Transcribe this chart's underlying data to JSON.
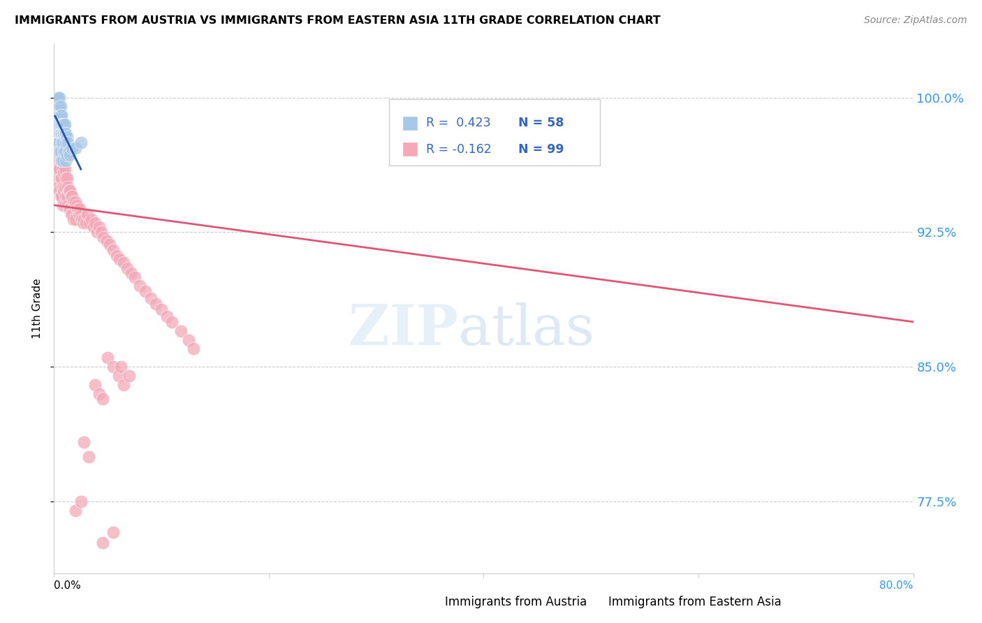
{
  "title": "IMMIGRANTS FROM AUSTRIA VS IMMIGRANTS FROM EASTERN ASIA 11TH GRADE CORRELATION CHART",
  "source": "Source: ZipAtlas.com",
  "xlabel_bottom_left": "0.0%",
  "xlabel_bottom_right": "80.0%",
  "ylabel": "11th Grade",
  "ytick_labels": [
    "77.5%",
    "85.0%",
    "92.5%",
    "100.0%"
  ],
  "ytick_values": [
    0.775,
    0.85,
    0.925,
    1.0
  ],
  "xlim": [
    0.0,
    0.8
  ],
  "ylim": [
    0.735,
    1.03
  ],
  "r_austria": 0.423,
  "n_austria": 58,
  "r_eastern_asia": -0.162,
  "n_eastern_asia": 99,
  "blue_color": "#a8c8e8",
  "pink_color": "#f4a8b8",
  "blue_line_color": "#2255aa",
  "pink_line_color": "#e05575",
  "legend_label_austria": "Immigrants from Austria",
  "legend_label_eastern_asia": "Immigrants from Eastern Asia",
  "austria_x": [
    0.001,
    0.001,
    0.001,
    0.002,
    0.002,
    0.002,
    0.002,
    0.002,
    0.003,
    0.003,
    0.003,
    0.003,
    0.003,
    0.003,
    0.003,
    0.004,
    0.004,
    0.004,
    0.004,
    0.004,
    0.004,
    0.005,
    0.005,
    0.005,
    0.005,
    0.005,
    0.005,
    0.006,
    0.006,
    0.006,
    0.006,
    0.006,
    0.007,
    0.007,
    0.007,
    0.007,
    0.007,
    0.008,
    0.008,
    0.008,
    0.008,
    0.009,
    0.009,
    0.009,
    0.01,
    0.01,
    0.01,
    0.011,
    0.011,
    0.011,
    0.012,
    0.012,
    0.013,
    0.014,
    0.015,
    0.017,
    0.02,
    0.025
  ],
  "austria_y": [
    0.99,
    0.995,
    1.0,
    0.985,
    0.99,
    0.995,
    1.0,
    0.985,
    0.99,
    0.995,
    1.0,
    0.985,
    0.99,
    0.98,
    0.975,
    0.99,
    0.995,
    1.0,
    0.985,
    0.975,
    0.97,
    0.99,
    0.995,
    1.0,
    0.985,
    0.975,
    0.97,
    0.99,
    0.995,
    0.985,
    0.98,
    0.97,
    0.99,
    0.985,
    0.98,
    0.975,
    0.965,
    0.985,
    0.98,
    0.975,
    0.965,
    0.985,
    0.98,
    0.97,
    0.985,
    0.98,
    0.97,
    0.98,
    0.975,
    0.965,
    0.978,
    0.968,
    0.975,
    0.97,
    0.968,
    0.972,
    0.972,
    0.975
  ],
  "eastern_asia_x": [
    0.001,
    0.002,
    0.002,
    0.003,
    0.003,
    0.003,
    0.004,
    0.004,
    0.004,
    0.005,
    0.005,
    0.005,
    0.006,
    0.006,
    0.006,
    0.007,
    0.007,
    0.007,
    0.008,
    0.008,
    0.008,
    0.009,
    0.009,
    0.01,
    0.01,
    0.01,
    0.011,
    0.011,
    0.012,
    0.012,
    0.013,
    0.013,
    0.014,
    0.014,
    0.015,
    0.015,
    0.016,
    0.016,
    0.017,
    0.017,
    0.018,
    0.018,
    0.019,
    0.02,
    0.02,
    0.021,
    0.022,
    0.023,
    0.024,
    0.025,
    0.026,
    0.027,
    0.028,
    0.03,
    0.031,
    0.033,
    0.035,
    0.037,
    0.038,
    0.04,
    0.042,
    0.044,
    0.046,
    0.049,
    0.052,
    0.055,
    0.058,
    0.061,
    0.065,
    0.068,
    0.072,
    0.075,
    0.08,
    0.085,
    0.09,
    0.095,
    0.1,
    0.105,
    0.11,
    0.118,
    0.125,
    0.13,
    0.002,
    0.003,
    0.05,
    0.055,
    0.06,
    0.065,
    0.062,
    0.07,
    0.038,
    0.042,
    0.045,
    0.028,
    0.032,
    0.02,
    0.025,
    0.045,
    0.055
  ],
  "eastern_asia_y": [
    0.96,
    0.97,
    0.96,
    0.975,
    0.965,
    0.955,
    0.975,
    0.96,
    0.95,
    0.97,
    0.96,
    0.948,
    0.965,
    0.955,
    0.945,
    0.965,
    0.955,
    0.945,
    0.96,
    0.95,
    0.94,
    0.958,
    0.948,
    0.96,
    0.95,
    0.94,
    0.955,
    0.945,
    0.955,
    0.945,
    0.95,
    0.94,
    0.948,
    0.938,
    0.948,
    0.938,
    0.945,
    0.935,
    0.945,
    0.935,
    0.942,
    0.932,
    0.94,
    0.942,
    0.932,
    0.94,
    0.938,
    0.935,
    0.938,
    0.935,
    0.932,
    0.93,
    0.932,
    0.93,
    0.935,
    0.93,
    0.932,
    0.928,
    0.93,
    0.925,
    0.928,
    0.925,
    0.922,
    0.92,
    0.918,
    0.915,
    0.912,
    0.91,
    0.908,
    0.905,
    0.902,
    0.9,
    0.895,
    0.892,
    0.888,
    0.885,
    0.882,
    0.878,
    0.875,
    0.87,
    0.865,
    0.86,
    0.99,
    1.0,
    0.855,
    0.85,
    0.845,
    0.84,
    0.85,
    0.845,
    0.84,
    0.835,
    0.832,
    0.808,
    0.8,
    0.77,
    0.775,
    0.752,
    0.758
  ],
  "pink_trendline_x": [
    0.0,
    0.8
  ],
  "pink_trendline_y": [
    0.94,
    0.875
  ]
}
